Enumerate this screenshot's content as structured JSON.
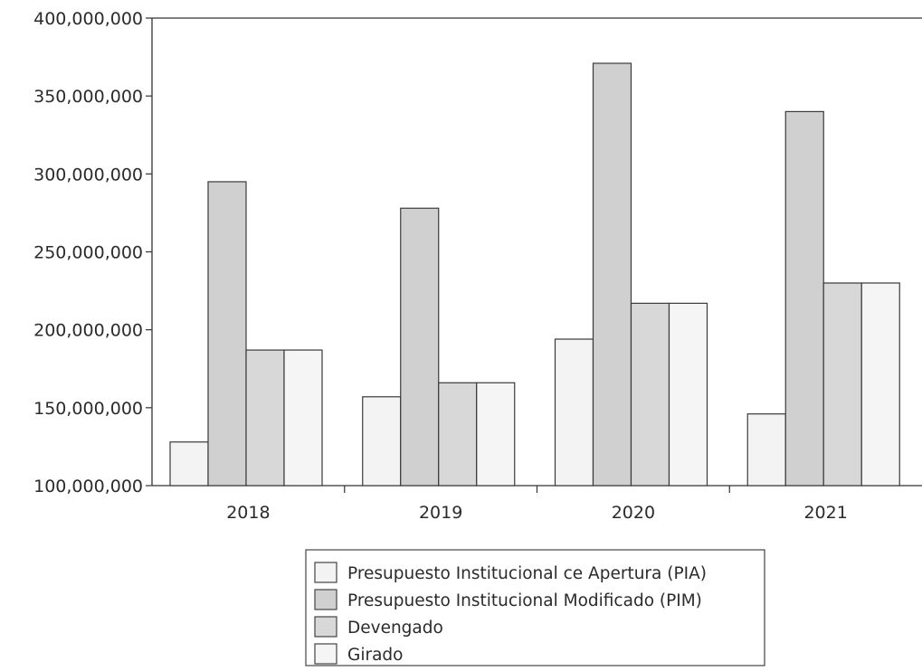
{
  "chart_data": {
    "type": "bar",
    "categories": [
      "2018",
      "2019",
      "2020",
      "2021"
    ],
    "series": [
      {
        "name": "Presupuesto Institucional ce Apertura (PIA)",
        "values": [
          128000000,
          157000000,
          194000000,
          146000000
        ],
        "fill": "#f3f3f3"
      },
      {
        "name": "Presupuesto Institucional Modificado (PIM)",
        "values": [
          295000000,
          278000000,
          371000000,
          340000000
        ],
        "fill": "#d0d0d0"
      },
      {
        "name": "Devengado",
        "values": [
          187000000,
          166000000,
          217000000,
          230000000
        ],
        "fill": "#d8d8d8"
      },
      {
        "name": "Girado",
        "values": [
          187000000,
          166000000,
          217000000,
          230000000
        ],
        "fill": "#f5f5f5"
      }
    ],
    "ylim": [
      100000000,
      400000000
    ],
    "yticks": [
      "100,000,000",
      "150,000,000",
      "200,000,000",
      "250,000,000",
      "300,000,000",
      "350,000,000",
      "400,000,000"
    ],
    "ytick_values": [
      100000000,
      150000000,
      200000000,
      250000000,
      300000000,
      350000000,
      400000000
    ],
    "title": "",
    "xlabel": "",
    "ylabel": "",
    "grid": false,
    "legend": "bottom-center",
    "colors": {
      "axis": "#333333",
      "bar_stroke": "#3a3a3a"
    }
  }
}
